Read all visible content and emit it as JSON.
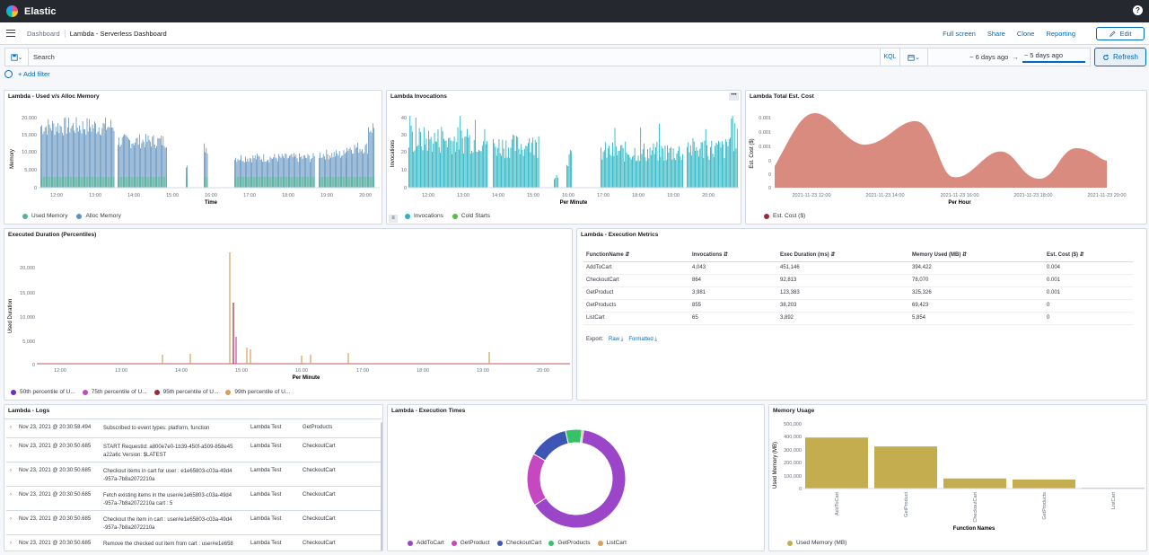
{
  "app": {
    "brand": "Elastic",
    "help_icon": "help-icon"
  },
  "nav": {
    "breadcrumbs": [
      "Dashboard",
      "Lambda - Serverless Dashboard"
    ],
    "links": [
      "Full screen",
      "Share",
      "Clone",
      "Reporting"
    ],
    "edit_label": "Edit"
  },
  "query": {
    "placeholder": "Search",
    "language": "KQL",
    "start": "~ 6 days ago",
    "arrow": "→",
    "end": "~ 5 days ago",
    "refresh_label": "Refresh",
    "add_filter": "+ Add filter"
  },
  "panels": {
    "memory": {
      "title": "Lambda - Used v/s Alloc Memory",
      "ylabel": "Memory",
      "xlabel": "Time",
      "yticks": [
        "20,000",
        "15,000",
        "10,000",
        "5,000",
        "0"
      ],
      "xticks": [
        "12:00",
        "13:00",
        "14:00",
        "15:00",
        "16:00",
        "17:00",
        "18:00",
        "19:00",
        "20:00"
      ],
      "legend": [
        "Used Memory",
        "Alloc Memory"
      ]
    },
    "invocations": {
      "title": "Lambda Invocations",
      "menu": "•••",
      "ylabel": "Invocations",
      "xlabel": "Per Minute",
      "yticks": [
        "40",
        "30",
        "20",
        "10",
        "0"
      ],
      "xticks": [
        "12:00",
        "13:00",
        "14:00",
        "15:00",
        "16:00",
        "17:00",
        "18:00",
        "19:00",
        "20:00"
      ],
      "legend": [
        "Invocations",
        "Cold Starts"
      ]
    },
    "cost": {
      "title": "Lambda Total Est. Cost",
      "ylabel": "Est. Cost ($)",
      "xlabel": "Per Hour",
      "yticks": [
        "0.001",
        "0.001",
        "0.001",
        "0",
        "0",
        "0"
      ],
      "xticks": [
        "2021-11-23 12:00",
        "2021-11-23 14:00",
        "2021-11-23 16:00",
        "2021-11-23 18:00",
        "2021-11-23 20:00"
      ],
      "legend": [
        "Est. Cost ($)"
      ]
    },
    "duration": {
      "title": "Executed Duration (Percentiles)",
      "ylabel": "Used Duration",
      "xlabel": "Per Minute",
      "yticks": [
        "20,000",
        "15,000",
        "10,000",
        "5,000",
        "0"
      ],
      "xticks": [
        "12:00",
        "13:00",
        "14:00",
        "15:00",
        "16:00",
        "17:00",
        "18:00",
        "19:00",
        "20:00"
      ],
      "legend": [
        "50th percentile of U...",
        "75th percentile of U...",
        "95th percentile of U...",
        "99th percentile of U..."
      ]
    },
    "metrics": {
      "title": "Lambda - Execution Metrics",
      "columns": [
        "FunctionName",
        "Invocations",
        "Exec Duration (ms)",
        "Memory Used (MB)",
        "Est. Cost ($)"
      ],
      "rows": [
        [
          "AddToCart",
          "4,043",
          "451,146",
          "394,422",
          "0.004"
        ],
        [
          "CheckoutCart",
          "864",
          "92,813",
          "78,070",
          "0.001"
        ],
        [
          "GetProduct",
          "3,981",
          "123,383",
          "325,326",
          "0.001"
        ],
        [
          "GetProducts",
          "855",
          "38,203",
          "69,423",
          "0"
        ],
        [
          "ListCart",
          "65",
          "3,892",
          "5,854",
          "0"
        ]
      ],
      "export_label": "Export:",
      "raw_label": "Raw",
      "formatted_label": "Formatted"
    },
    "logs": {
      "title": "Lambda - Logs",
      "rows": [
        {
          "ts": "Nov 23, 2021 @ 20:30:58.494",
          "msg": "Subscribed to event types: platform, function",
          "fn": "Lambda Test",
          "name": "GetProducts"
        },
        {
          "ts": "Nov 23, 2021 @ 20:30:50.685",
          "msg": "START RequestId: a800e7e0-1b39-450f-a509-858e45 a22a6c Version: $LATEST",
          "fn": "Lambda Test",
          "name": "CheckoutCart"
        },
        {
          "ts": "Nov 23, 2021 @ 20:30:50.685",
          "msg": "Checkout items in cart for user : e1e65803-c03a-49d4 -957a-7b8a2072210a",
          "fn": "Lambda Test",
          "name": "CheckoutCart"
        },
        {
          "ts": "Nov 23, 2021 @ 20:30:50.685",
          "msg": "Fetch existing items in the user#e1e65803-c03a-49d4 -957a-7b8a2072210a cart : 5",
          "fn": "Lambda Test",
          "name": "CheckoutCart"
        },
        {
          "ts": "Nov 23, 2021 @ 20:30:50.685",
          "msg": "Checkout the item in cart : user#e1e65803-c03a-49d4 -957a-7b8a2072210a",
          "fn": "Lambda Test",
          "name": "CheckoutCart"
        },
        {
          "ts": "Nov 23, 2021 @ 20:30:50.685",
          "msg": "Remove the checked out item from cart : user#e1e658",
          "fn": "Lambda Test",
          "name": "CheckoutCart"
        }
      ]
    },
    "exec_times": {
      "title": "Lambda - Execution Times",
      "legend": [
        "AddToCart",
        "GetProduct",
        "CheckoutCart",
        "GetProducts",
        "ListCart"
      ]
    },
    "mem_usage": {
      "title": "Memory Usage",
      "ylabel": "Used Memory (MB)",
      "xlabel": "Function Names",
      "yticks": [
        "500,000",
        "400,000",
        "300,000",
        "200,000",
        "100,000",
        "0"
      ],
      "legend": [
        "Used Memory (MB)"
      ]
    }
  },
  "colors": {
    "used_memory": "#54b399",
    "alloc_memory": "#6092c0",
    "invocations": "#2bb5c3",
    "cold_starts": "#50c23c",
    "cost": "#da8b7f",
    "p50": "#6c2ebd",
    "p75": "#c548c0",
    "p95": "#9c2a35",
    "p99": "#d6a05a",
    "bar_memory": "#c3ad4e"
  },
  "chart_data": [
    {
      "type": "pie",
      "title": "Lambda - Execution Times",
      "categories": [
        "AddToCart",
        "GetProduct",
        "CheckoutCart",
        "GetProducts",
        "ListCart"
      ],
      "values": [
        451146,
        123383,
        92813,
        38203,
        3892
      ],
      "colors": [
        "#9b45c8",
        "#c548c0",
        "#3d55b5",
        "#37c26a",
        "#d6a05a"
      ]
    },
    {
      "type": "bar",
      "title": "Memory Usage",
      "categories": [
        "AddToCart",
        "GetProduct",
        "CheckoutCart",
        "GetProducts",
        "ListCart"
      ],
      "values": [
        394422,
        325326,
        78070,
        69423,
        5854
      ],
      "xlabel": "Function Names",
      "ylabel": "Used Memory (MB)",
      "ylim": [
        0,
        500000
      ]
    }
  ]
}
